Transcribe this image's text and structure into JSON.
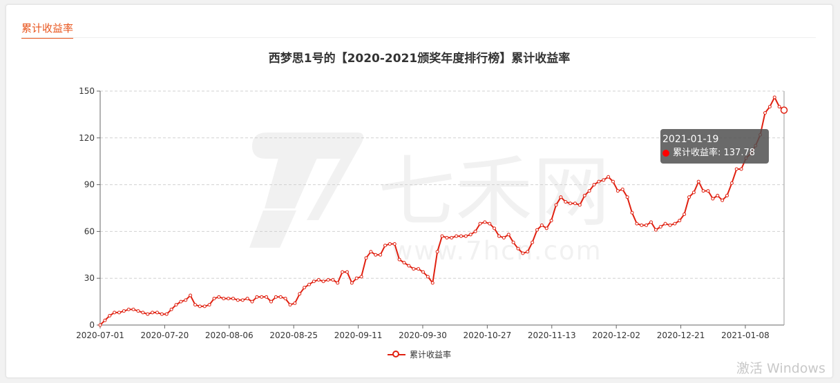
{
  "section": {
    "title": "累计收益率"
  },
  "chart_data": {
    "type": "line",
    "title": "西梦思1号的【2020-2021颁奖年度排行榜】累计收益率",
    "ylim": [
      0,
      150
    ],
    "yticks": [
      0,
      30,
      60,
      90,
      120,
      150
    ],
    "xticks": [
      "2020-07-01",
      "2020-07-20",
      "2020-08-06",
      "2020-08-25",
      "2020-09-11",
      "2020-09-30",
      "2020-10-27",
      "2020-11-13",
      "2020-12-02",
      "2020-12-21",
      "2021-01-08"
    ],
    "grid": "horizontal-dashed",
    "legend_position": "bottom-center",
    "series": [
      {
        "name": "累计收益率",
        "color": "#e02010",
        "values": [
          0,
          3,
          6,
          8,
          8,
          9,
          10,
          10,
          9,
          8,
          7,
          8,
          8,
          7,
          7,
          10,
          13,
          15,
          16,
          19,
          13,
          12,
          12,
          13,
          17,
          18,
          17,
          17,
          17,
          16,
          16,
          17,
          15,
          18,
          18,
          18,
          15,
          18,
          18,
          17,
          13,
          14,
          20,
          24,
          26,
          28,
          29,
          28,
          29,
          29,
          27,
          34,
          34,
          27,
          30,
          31,
          43,
          47,
          45,
          45,
          51,
          52,
          52,
          42,
          40,
          38,
          36,
          36,
          34,
          31,
          27,
          47,
          57,
          56,
          56,
          57,
          57,
          57,
          58,
          60,
          65,
          66,
          65,
          62,
          57,
          56,
          58,
          53,
          49,
          46,
          47,
          53,
          61,
          64,
          62,
          67,
          77,
          82,
          79,
          78,
          78,
          77,
          83,
          86,
          90,
          92,
          93,
          95,
          92,
          86,
          87,
          82,
          72,
          65,
          64,
          64,
          66,
          61,
          63,
          65,
          64,
          65,
          67,
          71,
          82,
          85,
          92,
          86,
          86,
          81,
          83,
          80,
          83,
          91,
          100,
          100,
          107,
          110,
          115,
          122,
          136,
          140,
          146,
          140,
          137.78
        ]
      }
    ]
  },
  "tooltip": {
    "date": "2021-01-19",
    "label": "累计收益率: 137.78"
  },
  "legend": {
    "label": "累计收益率"
  },
  "watermark": {
    "logo": "七禾网",
    "url": "www.7hcn.com"
  },
  "os_watermark": {
    "text": "激活 Windows"
  }
}
